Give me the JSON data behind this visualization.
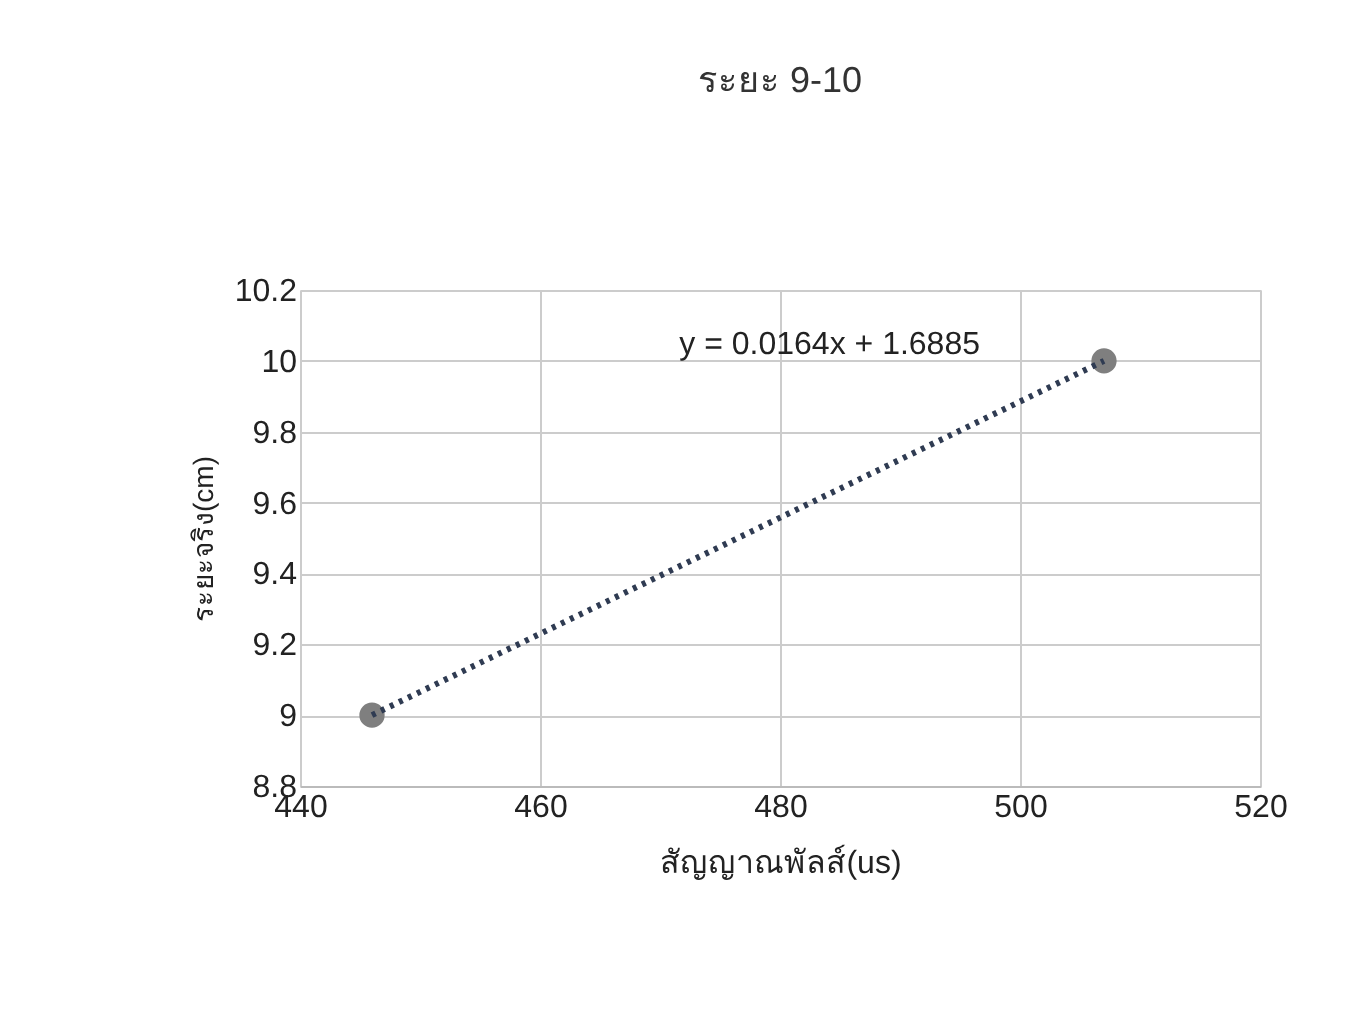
{
  "chart_data": {
    "type": "scatter",
    "title": "ระยะ 9-10",
    "xlabel": "สัญญาณพัลส์(us)",
    "ylabel": "ระยะจริง(cm)",
    "x": [
      446,
      507
    ],
    "series": [
      {
        "color": "#7f7f7f",
        "values": [
          9,
          10
        ],
        "marker": "circle"
      },
      {
        "type": "line",
        "color": "#2f3b52",
        "x": [
          446,
          507
        ],
        "values": [
          9,
          10
        ],
        "line_style": "dotted",
        "marker": "none"
      }
    ],
    "xlim": [
      440,
      520
    ],
    "xticks": [
      440,
      460,
      480,
      500,
      520
    ],
    "ylim": [
      8.8,
      10.2
    ],
    "yticks": [
      8.8,
      9,
      9.2,
      9.4,
      9.6,
      9.8,
      10,
      10.2
    ],
    "grid": true,
    "annotations": [
      "y = 0.0164x + 1.6885"
    ]
  }
}
